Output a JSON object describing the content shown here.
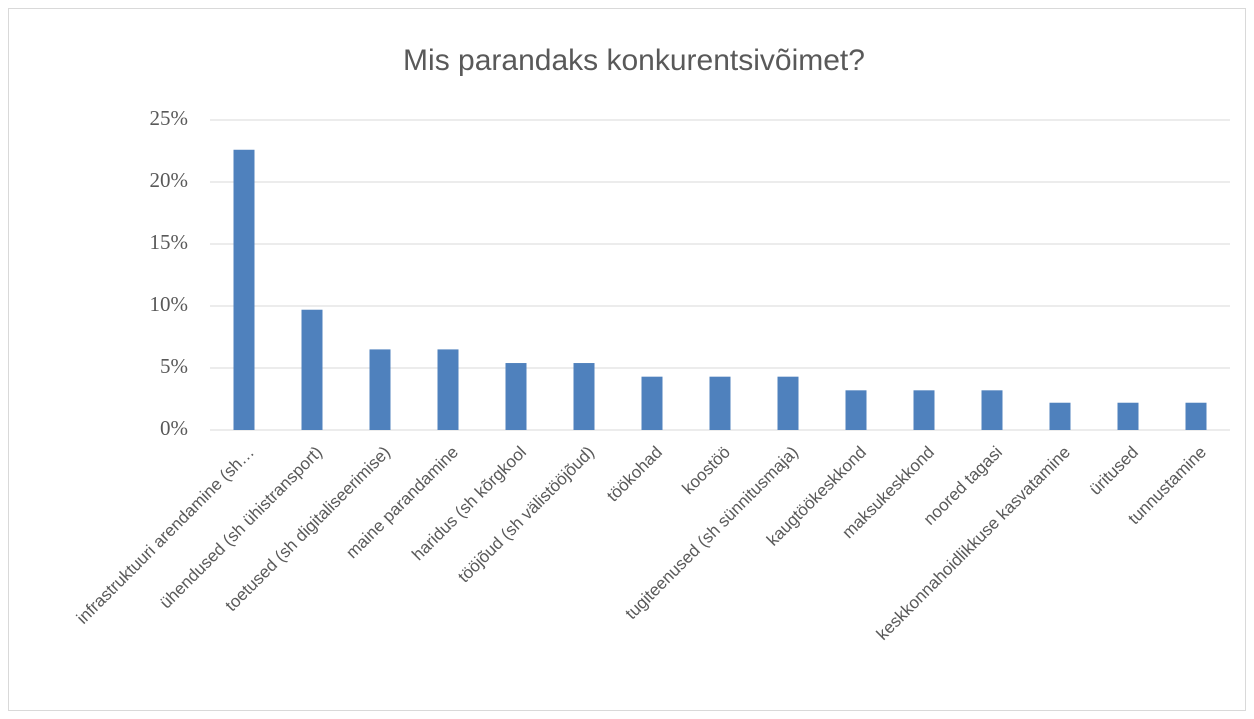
{
  "chart_data": {
    "type": "bar",
    "title": "Mis parandaks konkurentsivõimet?",
    "categories": [
      "infrastruktuuri arendamine (sh…",
      "ühendused (sh ühistransport)",
      "toetused (sh digitaliseerimise)",
      "maine parandamine",
      "haridus (sh kõrgkool",
      "tööjõud (sh välistööjõud)",
      "töökohad",
      "koostöö",
      "tugiteenused (sh sünnitusmaja)",
      "kaugtöökeskkond",
      "maksukeskkond",
      "noored tagasi",
      "keskkonnahoidlikkuse kasvatamine",
      "üritused",
      "tunnustamine"
    ],
    "values": [
      22.6,
      9.7,
      6.5,
      6.5,
      5.4,
      5.4,
      4.3,
      4.3,
      4.3,
      3.2,
      3.2,
      3.2,
      2.2,
      2.2,
      2.2
    ],
    "color": "#4f81bd",
    "ylim": [
      0,
      25
    ],
    "yticks": [
      {
        "value": 0,
        "label": "0%"
      },
      {
        "value": 5,
        "label": "5%"
      },
      {
        "value": 10,
        "label": "10%"
      },
      {
        "value": 15,
        "label": "15%"
      },
      {
        "value": 20,
        "label": "20%"
      },
      {
        "value": 25,
        "label": "25%"
      }
    ],
    "grid": true
  }
}
